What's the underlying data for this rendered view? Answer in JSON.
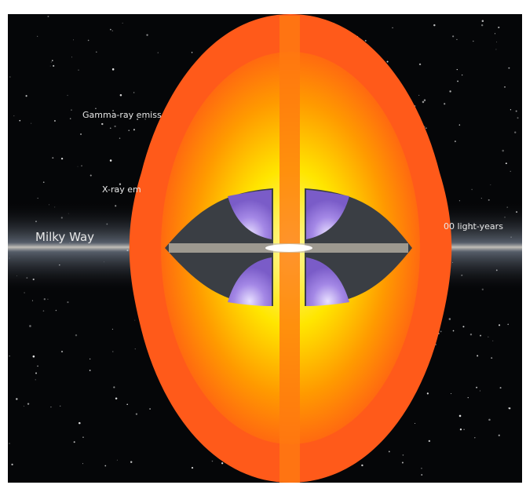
{
  "labels": {
    "gamma_ray": "Gamma-ray emiss",
    "x_ray": "X-ray em",
    "milky_way": "Milky Way",
    "scale": "00 light-years"
  }
}
